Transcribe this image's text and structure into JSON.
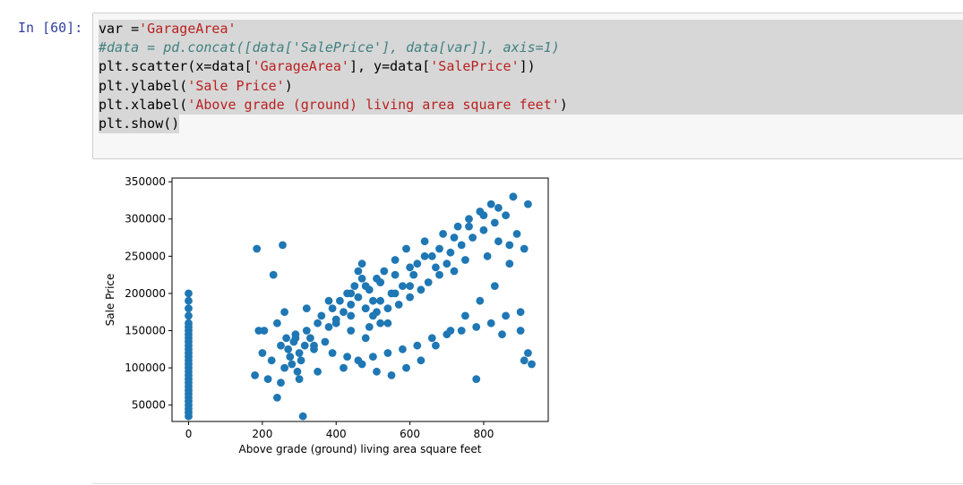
{
  "cell": {
    "prompt": "In [60]:",
    "code_tokens": [
      [
        {
          "t": "var =",
          "c": ""
        },
        {
          "t": "'GarageArea'",
          "c": "str"
        }
      ],
      [
        {
          "t": "#data = pd.concat([data['SalePrice'], data[var]], axis=1)",
          "c": "cmt"
        }
      ],
      [
        {
          "t": "plt.scatter(x=data[",
          "c": ""
        },
        {
          "t": "'GarageArea'",
          "c": "str"
        },
        {
          "t": "], y=data[",
          "c": ""
        },
        {
          "t": "'SalePrice'",
          "c": "str"
        },
        {
          "t": "])",
          "c": ""
        }
      ],
      [
        {
          "t": "plt.ylabel(",
          "c": ""
        },
        {
          "t": "'Sale Price'",
          "c": "str"
        },
        {
          "t": ")",
          "c": ""
        }
      ],
      [
        {
          "t": "plt.xlabel(",
          "c": ""
        },
        {
          "t": "'Above grade (ground) living area square feet'",
          "c": "str"
        },
        {
          "t": ")",
          "c": ""
        }
      ],
      [
        {
          "t": "plt.show()",
          "c": ""
        }
      ]
    ]
  },
  "chart_data": {
    "type": "scatter",
    "xlabel": "Above grade (ground) living area square feet",
    "ylabel": "Sale Price",
    "xlim": [
      -45,
      975
    ],
    "ylim": [
      28000,
      355000
    ],
    "xticks": [
      0,
      200,
      400,
      600,
      800
    ],
    "yticks": [
      50000,
      100000,
      150000,
      200000,
      250000,
      300000,
      350000
    ],
    "grid": false,
    "marker_color": "#1f77b4",
    "series": [
      {
        "x": [
          0,
          0,
          0,
          0,
          0,
          0,
          0,
          0,
          0,
          0,
          0,
          0,
          0,
          0,
          0,
          0,
          0,
          0,
          0,
          0,
          0,
          0,
          0,
          0,
          0,
          0,
          0,
          0,
          0,
          0,
          180,
          185,
          200,
          205,
          215,
          225,
          230,
          240,
          250,
          255,
          260,
          265,
          270,
          275,
          280,
          285,
          290,
          295,
          300,
          305,
          310,
          315,
          320,
          330,
          340,
          350,
          360,
          370,
          380,
          390,
          400,
          410,
          420,
          430,
          440,
          450,
          460,
          470,
          480,
          490,
          500,
          510,
          520,
          530,
          540,
          550,
          560,
          570,
          580,
          590,
          600,
          610,
          620,
          630,
          640,
          650,
          660,
          670,
          680,
          690,
          700,
          710,
          720,
          730,
          740,
          750,
          760,
          770,
          780,
          790,
          800,
          810,
          820,
          830,
          840,
          850,
          860,
          870,
          880,
          890,
          900,
          910,
          920,
          930,
          250,
          300,
          350,
          420,
          460,
          500,
          540,
          580,
          620,
          660,
          700,
          740,
          780,
          820,
          860,
          900,
          260,
          320,
          380,
          440,
          480,
          520,
          560,
          600,
          640,
          680,
          720,
          760,
          800,
          840,
          880,
          920,
          190,
          240,
          290,
          340,
          390,
          430,
          470,
          510,
          550,
          590,
          630,
          670,
          710,
          750,
          790,
          830,
          870,
          910,
          400,
          440,
          480,
          520,
          560,
          600,
          440,
          480,
          520,
          460,
          500,
          540,
          470,
          510,
          490
        ],
        "y": [
          35000,
          40000,
          45000,
          50000,
          55000,
          60000,
          65000,
          70000,
          75000,
          80000,
          85000,
          90000,
          95000,
          100000,
          105000,
          110000,
          115000,
          120000,
          125000,
          130000,
          135000,
          140000,
          145000,
          150000,
          155000,
          160000,
          170000,
          180000,
          190000,
          200000,
          90000,
          260000,
          120000,
          150000,
          85000,
          110000,
          225000,
          60000,
          130000,
          265000,
          100000,
          140000,
          125000,
          115000,
          105000,
          135000,
          145000,
          95000,
          120000,
          110000,
          35000,
          130000,
          150000,
          140000,
          125000,
          160000,
          170000,
          135000,
          155000,
          180000,
          165000,
          190000,
          175000,
          200000,
          185000,
          210000,
          195000,
          220000,
          180000,
          205000,
          190000,
          175000,
          215000,
          230000,
          160000,
          200000,
          245000,
          185000,
          210000,
          260000,
          195000,
          225000,
          240000,
          205000,
          270000,
          215000,
          250000,
          235000,
          225000,
          280000,
          240000,
          255000,
          230000,
          290000,
          265000,
          245000,
          300000,
          275000,
          85000,
          310000,
          285000,
          250000,
          320000,
          295000,
          270000,
          145000,
          305000,
          265000,
          330000,
          280000,
          150000,
          110000,
          120000,
          105000,
          80000,
          85000,
          95000,
          100000,
          110000,
          115000,
          120000,
          125000,
          130000,
          140000,
          145000,
          150000,
          155000,
          160000,
          170000,
          175000,
          175000,
          180000,
          190000,
          200000,
          210000,
          215000,
          225000,
          235000,
          250000,
          260000,
          275000,
          290000,
          305000,
          315000,
          330000,
          320000,
          150000,
          160000,
          140000,
          130000,
          120000,
          115000,
          105000,
          95000,
          90000,
          100000,
          110000,
          130000,
          150000,
          170000,
          190000,
          210000,
          240000,
          260000,
          160000,
          170000,
          180000,
          190000,
          200000,
          210000,
          150000,
          140000,
          160000,
          230000,
          170000,
          180000,
          240000,
          220000,
          155000
        ]
      }
    ]
  }
}
